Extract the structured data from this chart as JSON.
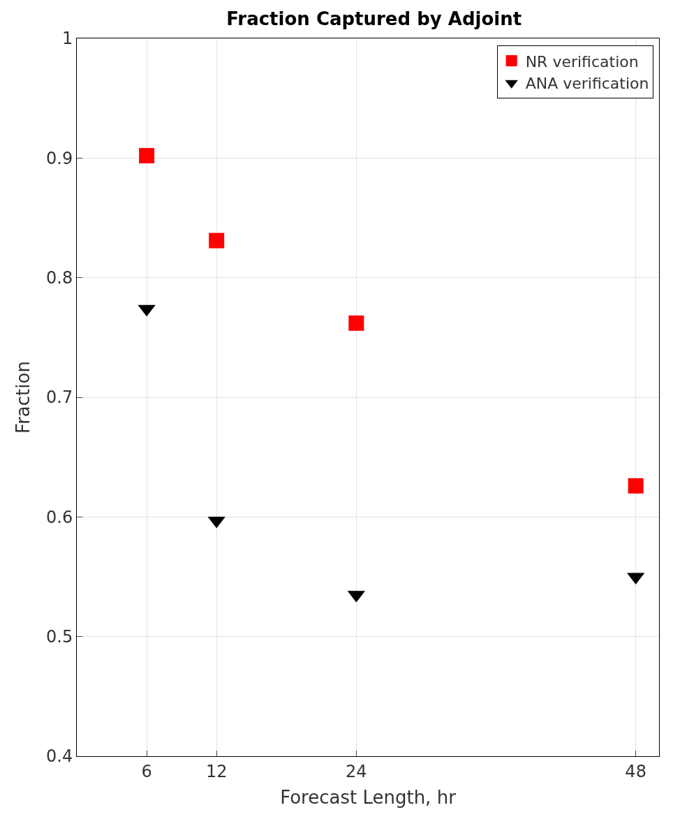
{
  "chart_data": {
    "type": "scatter",
    "title": "Fraction Captured by Adjoint",
    "xlabel": "Forecast Length, hr",
    "ylabel": "Fraction",
    "x": [
      6,
      12,
      24,
      48
    ],
    "series": [
      {
        "name": "NR verification",
        "color": "#ff0000",
        "marker": "square",
        "values": [
          0.902,
          0.831,
          0.762,
          0.626
        ]
      },
      {
        "name": "ANA verification",
        "color": "#000000",
        "marker": "triangle",
        "values": [
          0.774,
          0.597,
          0.535,
          0.55
        ]
      }
    ],
    "xlim": [
      0,
      50
    ],
    "xticks": [
      6,
      12,
      24,
      48
    ],
    "ylim": [
      0.4,
      1
    ],
    "yticks": [
      0.4,
      0.5,
      0.6,
      0.7,
      0.8,
      0.9,
      1
    ],
    "grid": true,
    "legend": "top right"
  }
}
